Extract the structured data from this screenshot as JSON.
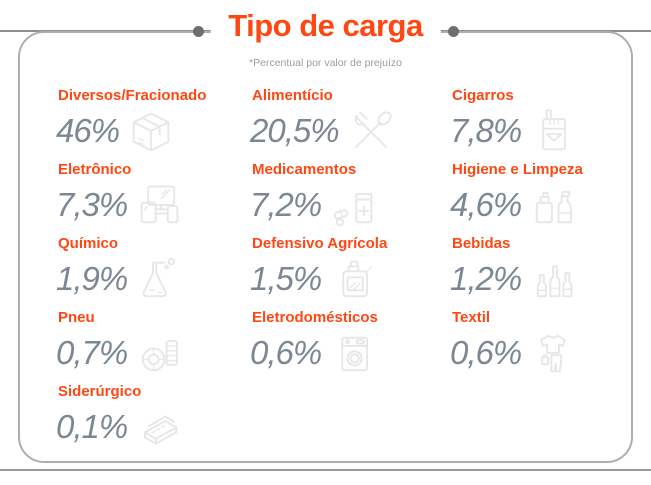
{
  "page": {
    "title": "Tipo de carga",
    "subtitle": "*Percentual por valor de prejuízo"
  },
  "colors": {
    "accent_orange": "#ff4713",
    "value_gray": "#7c8795",
    "icon_gray": "#e7e7e7",
    "rule_gray": "#8f8f8f",
    "border_gray": "#aeaeae",
    "dot_gray": "#6e6e6e"
  },
  "chart_data": {
    "type": "table",
    "title": "Tipo de carga",
    "subtitle": "*Percentual por valor de prejuízo",
    "unit": "%",
    "layout": "3-column icon grid, values as percent of loss value",
    "items": [
      {
        "label": "Diversos/Fracionado",
        "value": 46,
        "display": "46%",
        "icon": "package-box"
      },
      {
        "label": "Alimentício",
        "value": 20.5,
        "display": "20,5%",
        "icon": "cutlery"
      },
      {
        "label": "Cigarros",
        "value": 7.8,
        "display": "7,8%",
        "icon": "cigarette-pack"
      },
      {
        "label": "Eletrônico",
        "value": 7.3,
        "display": "7,3%",
        "icon": "electronic-devices"
      },
      {
        "label": "Medicamentos",
        "value": 7.2,
        "display": "7,2%",
        "icon": "medicine"
      },
      {
        "label": "Higiene e Limpeza",
        "value": 4.6,
        "display": "4,6%",
        "icon": "cleaning-products"
      },
      {
        "label": "Químico",
        "value": 1.9,
        "display": "1,9%",
        "icon": "chemistry-flask"
      },
      {
        "label": "Defensivo Agrícola",
        "value": 1.5,
        "display": "1,5%",
        "icon": "agro-canister"
      },
      {
        "label": "Bebidas",
        "value": 1.2,
        "display": "1,2%",
        "icon": "beverage-bottles"
      },
      {
        "label": "Pneu",
        "value": 0.7,
        "display": "0,7%",
        "icon": "tire"
      },
      {
        "label": "Eletrodomésticos",
        "value": 0.6,
        "display": "0,6%",
        "icon": "washing-machine"
      },
      {
        "label": "Textil",
        "value": 0.6,
        "display": "0,6%",
        "icon": "clothing"
      },
      {
        "label": "Siderúrgico",
        "value": 0.1,
        "display": "0,1%",
        "icon": "steel-plates"
      }
    ]
  }
}
